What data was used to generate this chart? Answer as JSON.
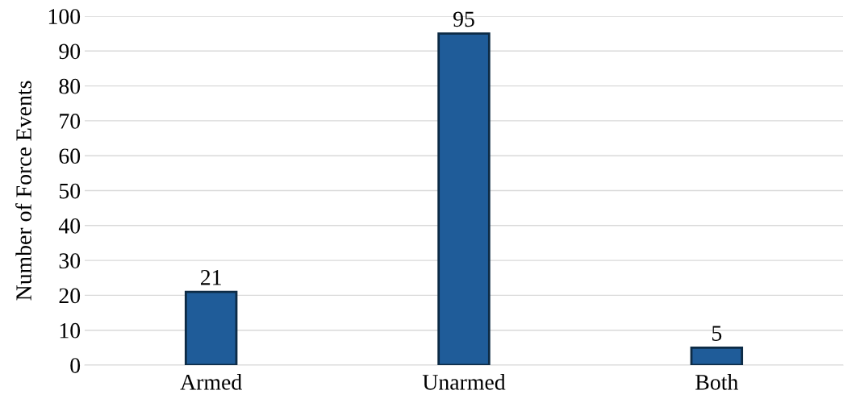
{
  "chart_data": {
    "type": "bar",
    "ylabel": "Number of Force Events",
    "categories": [
      "Armed",
      "Unarmed",
      "Both"
    ],
    "values": [
      21,
      95,
      5
    ],
    "color": "#1f5c99",
    "ylim": [
      0,
      100
    ],
    "yticks": [
      0,
      10,
      20,
      30,
      40,
      50,
      60,
      70,
      80,
      90,
      100
    ],
    "grid": "y",
    "data_labels": true
  }
}
